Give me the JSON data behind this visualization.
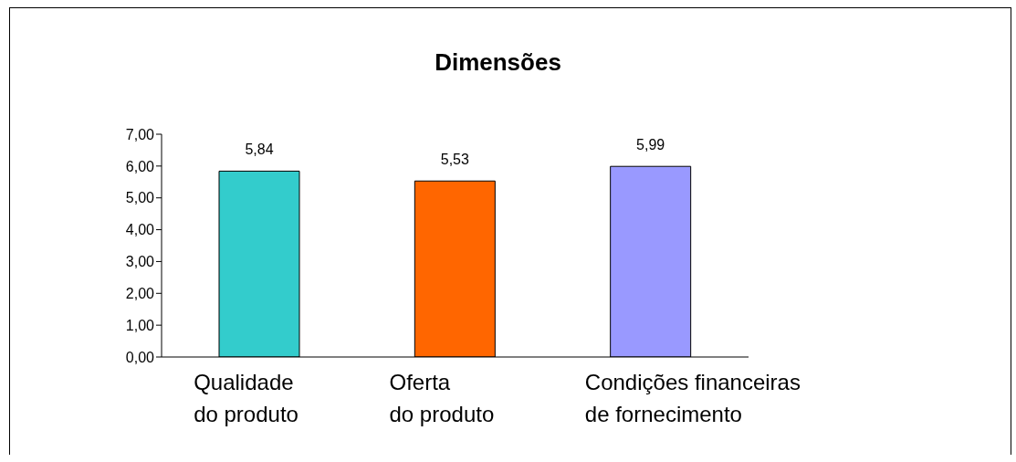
{
  "chart_data": {
    "type": "bar",
    "title": "Dimensões",
    "categories": [
      "Qualidade\ndo produto",
      "Oferta\ndo produto",
      "Condições financeiras\nde fornecimento"
    ],
    "values": [
      5.84,
      5.53,
      5.99
    ],
    "value_labels": [
      "5,84",
      "5,53",
      "5,99"
    ],
    "colors": [
      "#33cccc",
      "#ff6600",
      "#9999ff"
    ],
    "ylim": [
      0,
      7
    ],
    "yticks": [
      {
        "value": 0,
        "label": "0,00"
      },
      {
        "value": 1,
        "label": "1,00"
      },
      {
        "value": 2,
        "label": "2,00"
      },
      {
        "value": 3,
        "label": "3,00"
      },
      {
        "value": 4,
        "label": "4,00"
      },
      {
        "value": 5,
        "label": "5,00"
      },
      {
        "value": 6,
        "label": "6,00"
      },
      {
        "value": 7,
        "label": "7,00"
      }
    ],
    "grid": false
  }
}
